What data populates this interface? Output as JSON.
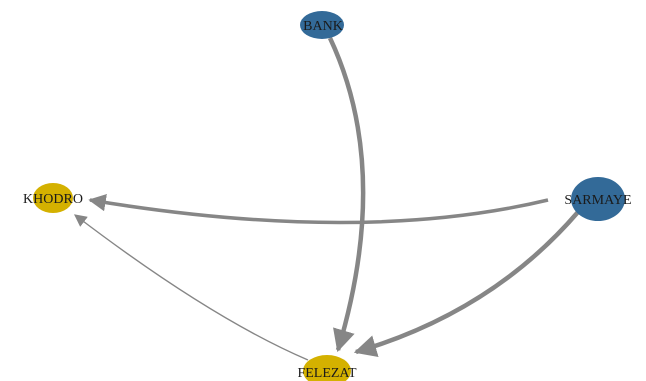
{
  "network": {
    "colors": {
      "blue_node": "#336a98",
      "yellow_node": "#d4b100",
      "edge": "#868686"
    },
    "nodes": [
      {
        "id": "BANK",
        "label": "BANK",
        "color": "#336a98"
      },
      {
        "id": "KHODRO",
        "label": "KHODRO",
        "color": "#d4b100"
      },
      {
        "id": "SARMAYE",
        "label": "SARMAYE",
        "color": "#336a98"
      },
      {
        "id": "FELEZAT",
        "label": "FELEZAT",
        "color": "#d4b100"
      }
    ],
    "edges": [
      {
        "from": "BANK",
        "to": "FELEZAT",
        "directed": true,
        "weight": "heavy"
      },
      {
        "from": "SARMAYE",
        "to": "KHODRO",
        "directed": true,
        "weight": "heavy"
      },
      {
        "from": "SARMAYE",
        "to": "FELEZAT",
        "directed": true,
        "weight": "heavy"
      },
      {
        "from": "FELEZAT",
        "to": "KHODRO",
        "directed": true,
        "weight": "light"
      }
    ]
  }
}
